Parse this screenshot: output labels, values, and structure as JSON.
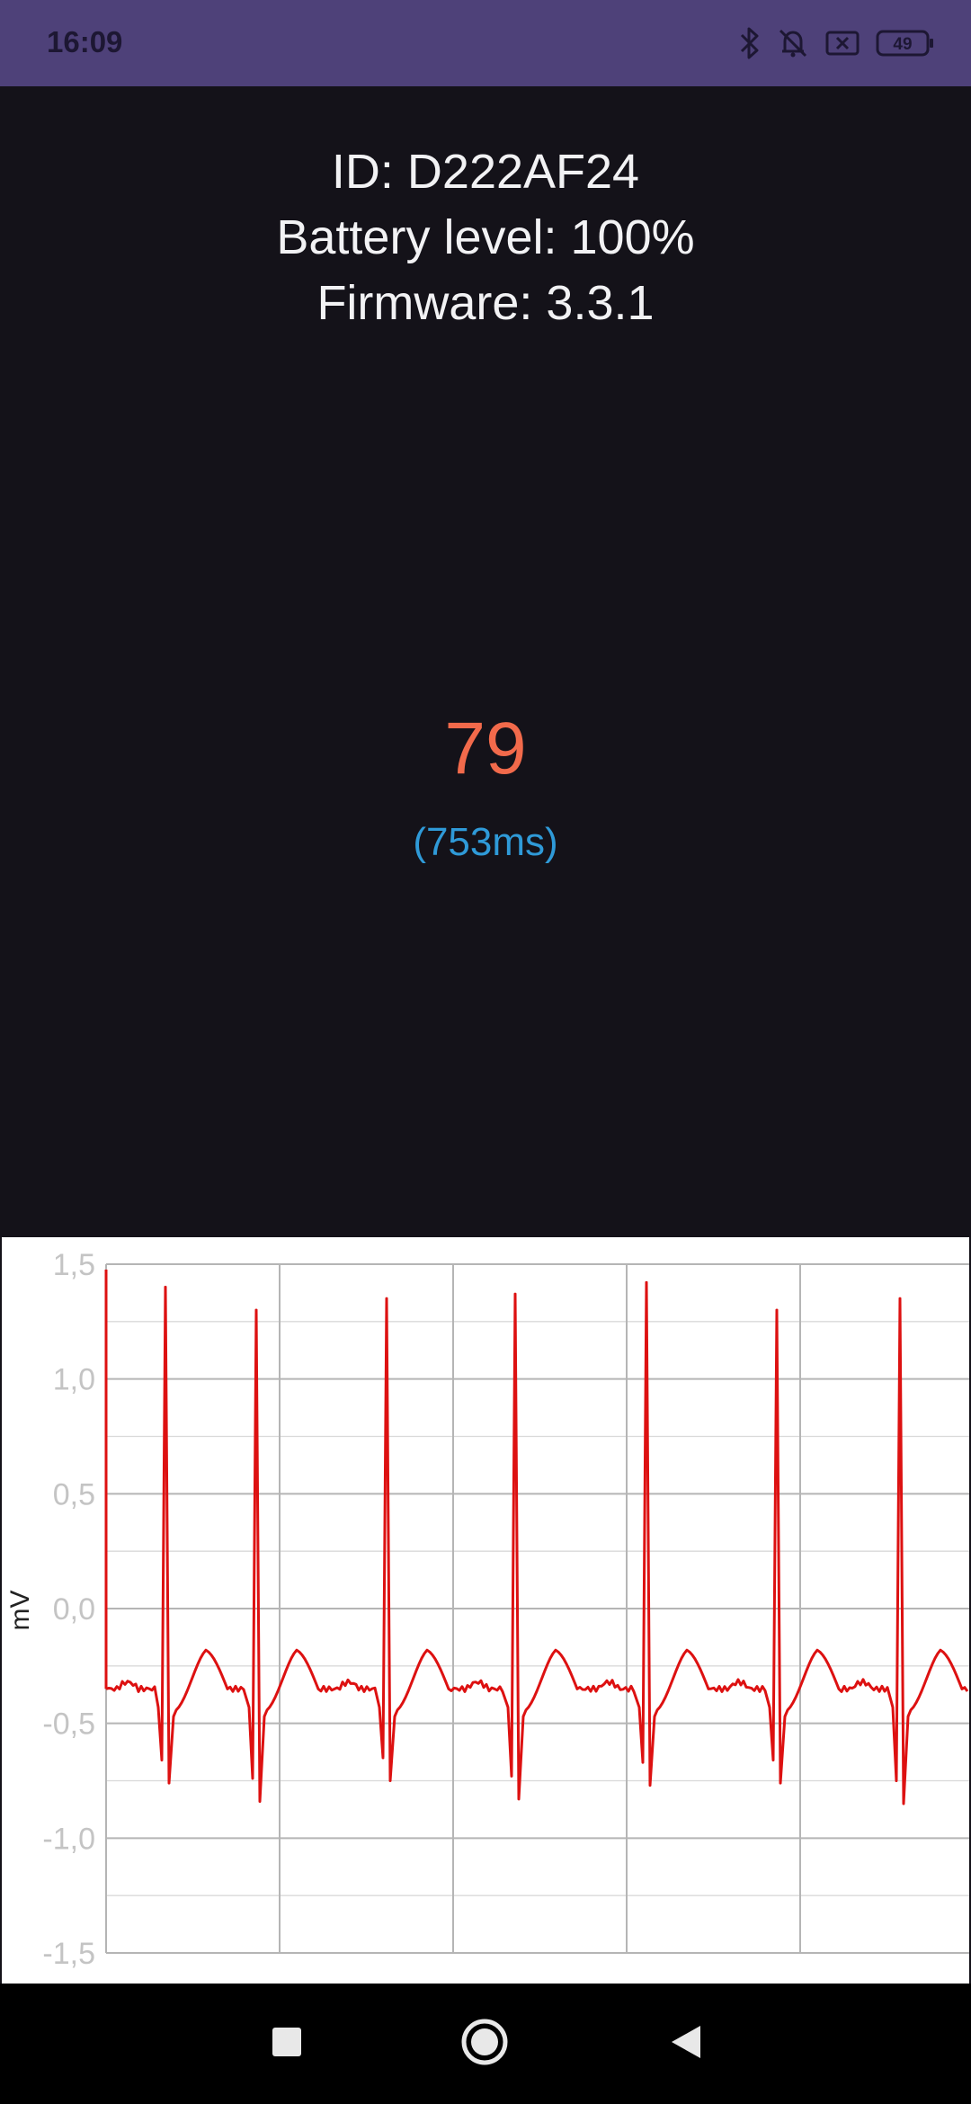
{
  "status_bar": {
    "time": "16:09",
    "battery_level": "49",
    "icons": [
      "bluetooth-icon",
      "bell-off-icon",
      "sim-off-icon",
      "battery-icon"
    ]
  },
  "device_info": {
    "id_text": "ID: D222AF24",
    "battery_text": "Battery level: 100%",
    "firmware_text": "Firmware: 3.3.1"
  },
  "heart_rate": {
    "bpm": "79",
    "rr_interval": "(753ms)",
    "bpm_color": "#f26a4b",
    "rr_color": "#2f9ad8"
  },
  "chart_data": {
    "type": "line",
    "ylabel": "mV",
    "ylim": [
      -1.5,
      1.5
    ],
    "y_ticks": [
      "1,5",
      "1,0",
      "0,5",
      "0,0",
      "-0,5",
      "-1,0",
      "-1,5"
    ],
    "grid": true,
    "line_color": "#dd1111",
    "r_peaks": [
      1.4,
      1.3,
      1.35,
      1.37,
      1.42,
      1.3,
      1.35
    ],
    "s_troughs": [
      -0.76,
      -0.84,
      -0.75,
      -0.83,
      -0.77,
      -0.76,
      -0.85
    ],
    "baseline": -0.35
  },
  "nav_bar": {
    "icons": [
      "recents-square-icon",
      "home-circle-icon",
      "back-triangle-icon"
    ]
  }
}
